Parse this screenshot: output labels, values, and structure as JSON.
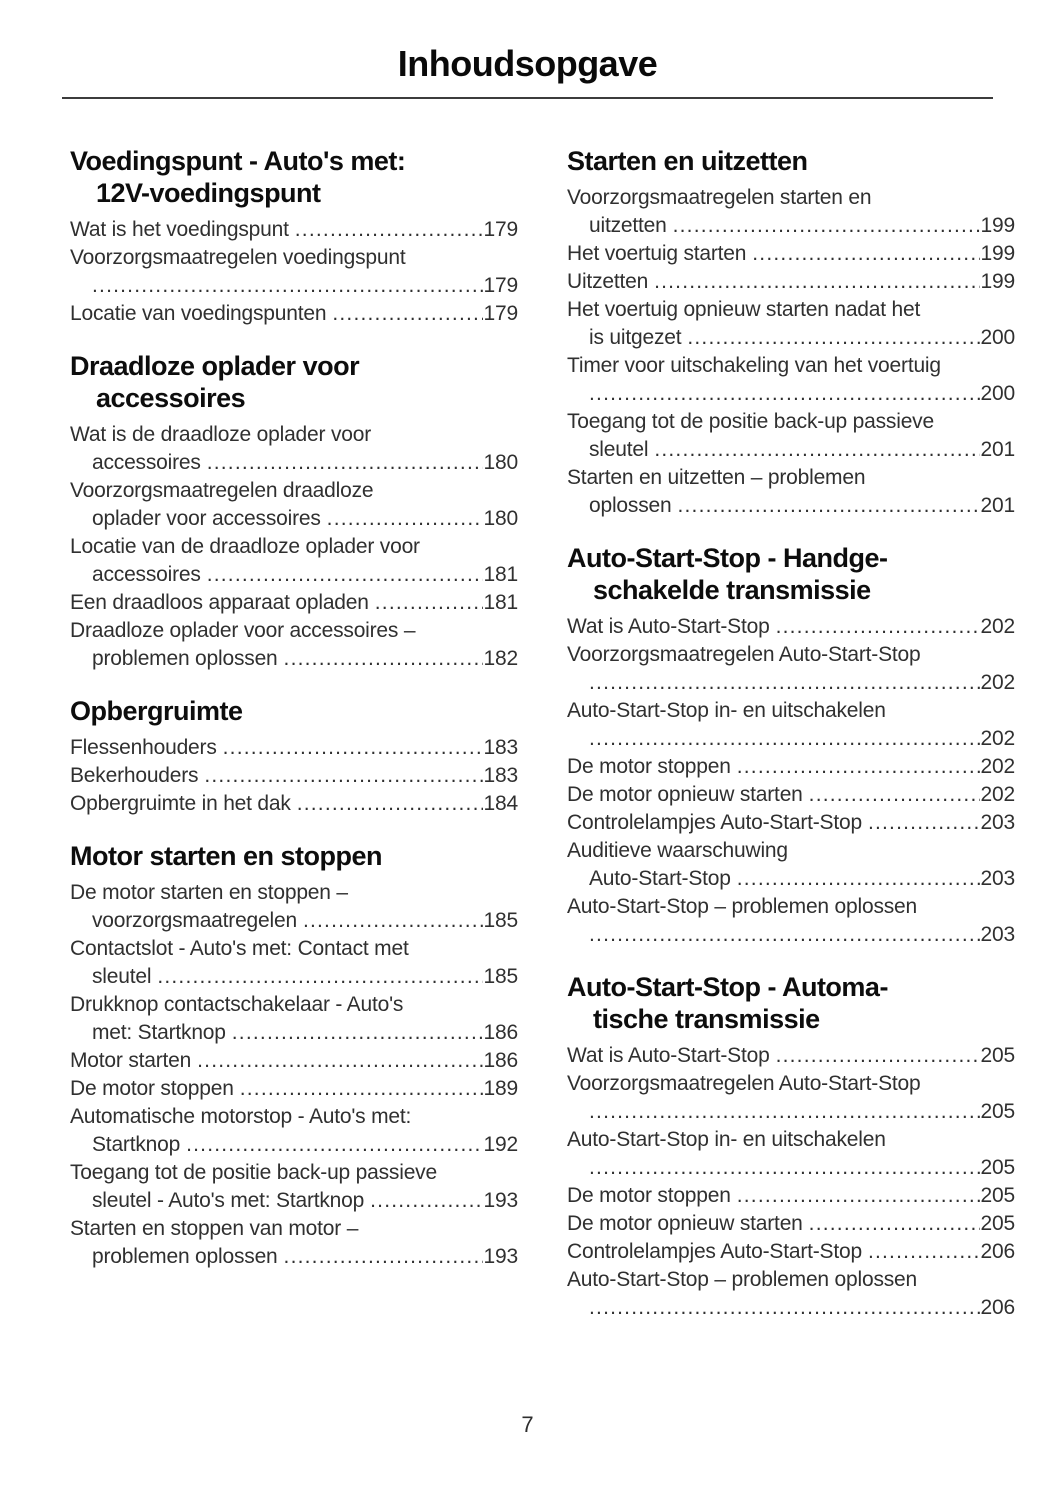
{
  "page": {
    "title": "Inhoudsopgave",
    "footer_page_number": "7"
  },
  "columns": [
    {
      "sections": [
        {
          "heading_lines": [
            "Voedingspunt - Auto's met:",
            "12V-voedingspunt"
          ],
          "entries": [
            {
              "pre": [],
              "tail": "Wat is het voedingspunt",
              "page": "179"
            },
            {
              "pre": [
                "Voorzorgsmaatregelen voedingspunt"
              ],
              "tail": "",
              "page": "179"
            },
            {
              "pre": [],
              "tail": "Locatie van voedingspunten",
              "page": "179"
            }
          ]
        },
        {
          "heading_lines": [
            "Draadloze oplader voor",
            "accessoires"
          ],
          "entries": [
            {
              "pre": [
                "Wat is de draadloze oplader voor"
              ],
              "tail": "accessoires",
              "page": "180"
            },
            {
              "pre": [
                "Voorzorgsmaatregelen draadloze"
              ],
              "tail": "oplader voor accessoires",
              "page": "180"
            },
            {
              "pre": [
                "Locatie van de draadloze oplader voor"
              ],
              "tail": "accessoires",
              "page": "181"
            },
            {
              "pre": [],
              "tail": "Een draadloos apparaat opladen",
              "page": "181"
            },
            {
              "pre": [
                "Draadloze oplader voor accessoires –"
              ],
              "tail": "problemen oplossen",
              "page": "182"
            }
          ]
        },
        {
          "heading_lines": [
            "Opbergruimte"
          ],
          "entries": [
            {
              "pre": [],
              "tail": "Flessenhouders",
              "page": "183"
            },
            {
              "pre": [],
              "tail": "Bekerhouders",
              "page": "183"
            },
            {
              "pre": [],
              "tail": "Opbergruimte in het dak",
              "page": "184"
            }
          ]
        },
        {
          "heading_lines": [
            "Motor starten en stoppen"
          ],
          "entries": [
            {
              "pre": [
                "De motor starten en stoppen –"
              ],
              "tail": "voorzorgsmaatregelen",
              "page": "185"
            },
            {
              "pre": [
                "Contactslot - Auto's met: Contact met"
              ],
              "tail": "sleutel",
              "page": "185"
            },
            {
              "pre": [
                "Drukknop contactschakelaar - Auto's"
              ],
              "tail": "met: Startknop",
              "page": "186"
            },
            {
              "pre": [],
              "tail": "Motor starten",
              "page": "186"
            },
            {
              "pre": [],
              "tail": "De motor stoppen",
              "page": "189"
            },
            {
              "pre": [
                "Automatische motorstop - Auto's met:"
              ],
              "tail": "Startknop",
              "page": "192"
            },
            {
              "pre": [
                "Toegang tot de positie back-up passieve"
              ],
              "tail": "sleutel - Auto's met: Startknop",
              "page": "193"
            },
            {
              "pre": [
                "Starten en stoppen van motor –"
              ],
              "tail": "problemen oplossen",
              "page": "193"
            }
          ]
        }
      ]
    },
    {
      "sections": [
        {
          "heading_lines": [
            "Starten en uitzetten"
          ],
          "entries": [
            {
              "pre": [
                "Voorzorgsmaatregelen starten en"
              ],
              "tail": "uitzetten",
              "page": "199"
            },
            {
              "pre": [],
              "tail": "Het voertuig starten",
              "page": "199"
            },
            {
              "pre": [],
              "tail": "Uitzetten",
              "page": "199"
            },
            {
              "pre": [
                "Het voertuig opnieuw starten nadat het"
              ],
              "tail": "is uitgezet",
              "page": "200"
            },
            {
              "pre": [
                "Timer voor uitschakeling van het voertuig"
              ],
              "tail": "",
              "page": "200"
            },
            {
              "pre": [
                "Toegang tot de positie back-up passieve"
              ],
              "tail": "sleutel",
              "page": "201"
            },
            {
              "pre": [
                "Starten en uitzetten – problemen"
              ],
              "tail": "oplossen",
              "page": "201"
            }
          ]
        },
        {
          "heading_lines": [
            "Auto-Start-Stop - Handge-",
            "schakelde transmissie"
          ],
          "entries": [
            {
              "pre": [],
              "tail": "Wat is Auto-Start-Stop",
              "page": "202"
            },
            {
              "pre": [
                "Voorzorgsmaatregelen Auto-Start-Stop"
              ],
              "tail": "",
              "page": "202"
            },
            {
              "pre": [
                "Auto-Start-Stop in- en uitschakelen"
              ],
              "tail": "",
              "page": "202"
            },
            {
              "pre": [],
              "tail": "De motor stoppen",
              "page": "202"
            },
            {
              "pre": [],
              "tail": "De motor opnieuw starten",
              "page": "202"
            },
            {
              "pre": [],
              "tail": "Controlelampjes Auto-Start-Stop",
              "page": "203"
            },
            {
              "pre": [
                "Auditieve waarschuwing"
              ],
              "tail": "Auto-Start-Stop",
              "page": "203"
            },
            {
              "pre": [
                "Auto-Start-Stop – problemen oplossen"
              ],
              "tail": "",
              "page": "203"
            }
          ]
        },
        {
          "heading_lines": [
            "Auto-Start-Stop - Automa-",
            "tische transmissie"
          ],
          "entries": [
            {
              "pre": [],
              "tail": "Wat is Auto-Start-Stop",
              "page": "205"
            },
            {
              "pre": [
                "Voorzorgsmaatregelen Auto-Start-Stop"
              ],
              "tail": "",
              "page": "205"
            },
            {
              "pre": [
                "Auto-Start-Stop in- en uitschakelen"
              ],
              "tail": "",
              "page": "205"
            },
            {
              "pre": [],
              "tail": "De motor stoppen",
              "page": "205"
            },
            {
              "pre": [],
              "tail": "De motor opnieuw starten",
              "page": "205"
            },
            {
              "pre": [],
              "tail": "Controlelampjes Auto-Start-Stop",
              "page": "206"
            },
            {
              "pre": [
                "Auto-Start-Stop – problemen oplossen"
              ],
              "tail": "",
              "page": "206"
            }
          ]
        }
      ]
    }
  ]
}
